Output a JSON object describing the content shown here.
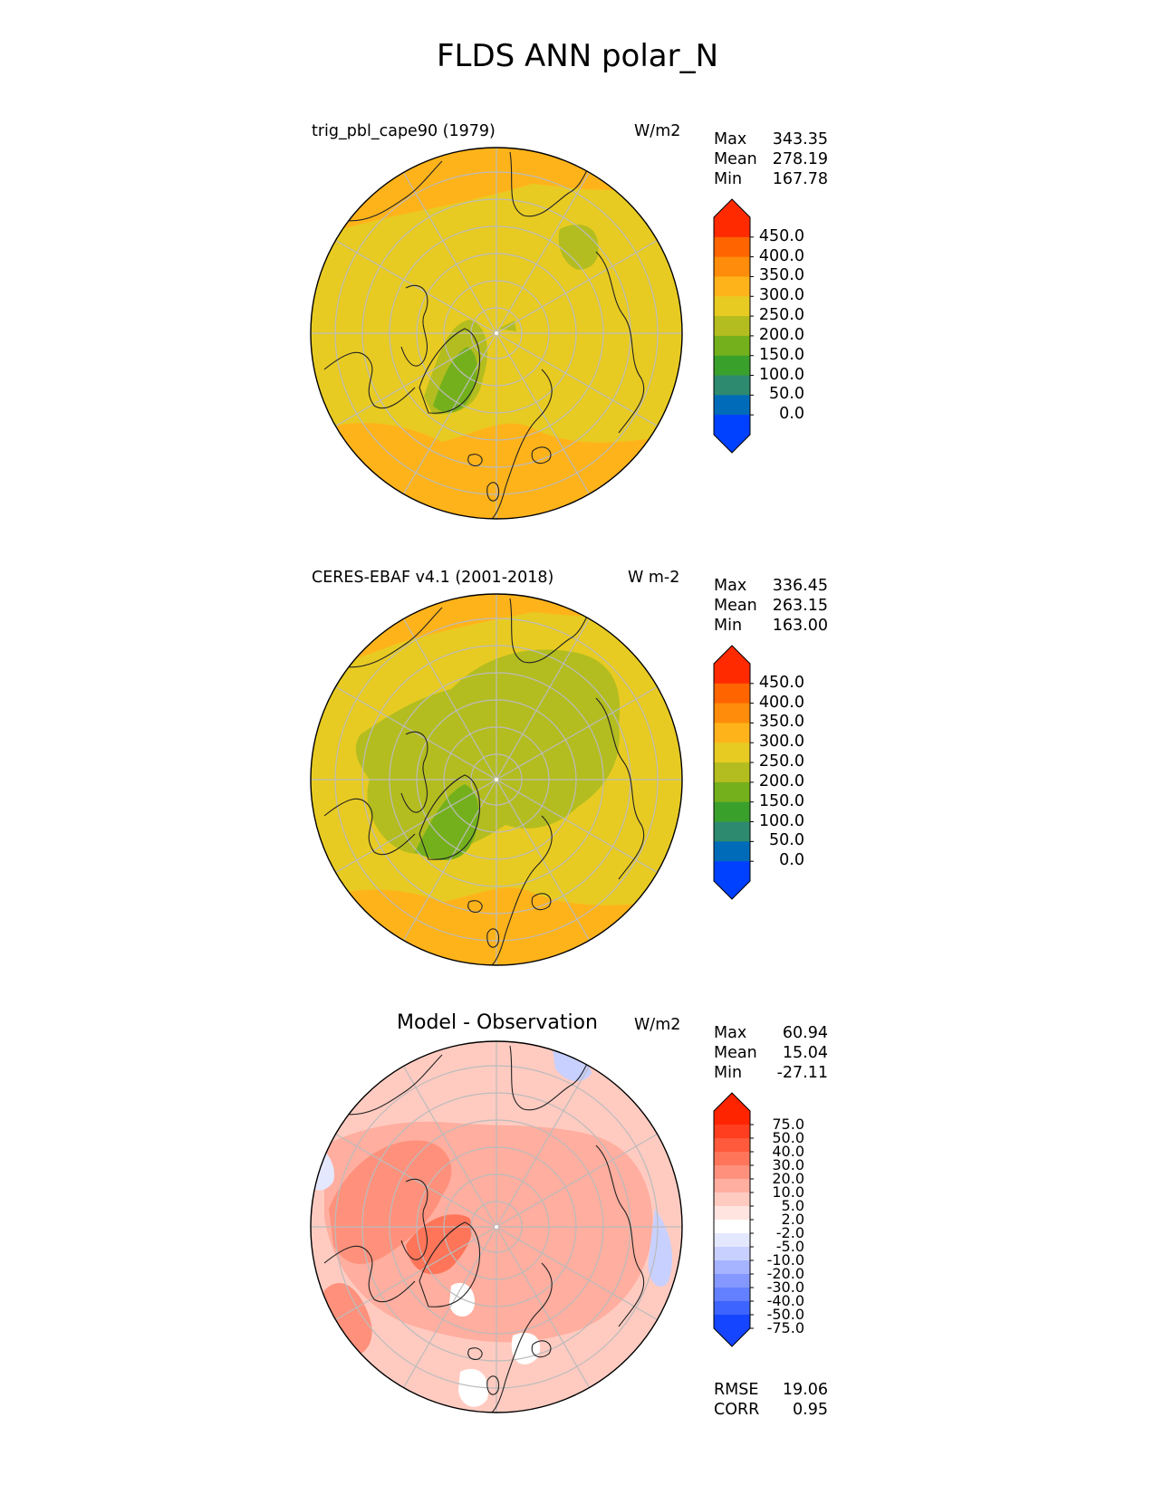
{
  "figure_title": "FLDS ANN polar_N",
  "colors": {
    "abs_levels": [
      "#0040ff",
      "#006bb8",
      "#2e8a6e",
      "#3aa02c",
      "#74b01c",
      "#b3bd1f",
      "#e8cb22",
      "#ffb31a",
      "#ff8c0a",
      "#ff6400",
      "#ff2a00"
    ],
    "diff_levels": [
      "#1545ff",
      "#3e64ff",
      "#6280ff",
      "#8498ff",
      "#a6b3ff",
      "#c8d0ff",
      "#e4e8ff",
      "#ffffff",
      "#ffe4e0",
      "#ffcbc1",
      "#ffae9f",
      "#ff917c",
      "#ff755a",
      "#ff5a3b",
      "#ff3d1f",
      "#ff2400"
    ],
    "coastline": "#222222",
    "grid": "#bbbbbb"
  },
  "panels": [
    {
      "left_title": "trig_pbl_cape90 (1979)",
      "units": "W/m2",
      "stats": [
        {
          "label": "Max",
          "value": "343.35"
        },
        {
          "label": "Mean",
          "value": "278.19"
        },
        {
          "label": "Min",
          "value": "167.78"
        }
      ],
      "colorbar_ticks": [
        "450.0",
        "400.0",
        "350.0",
        "300.0",
        "250.0",
        "200.0",
        "150.0",
        "100.0",
        "50.0",
        "0.0"
      ]
    },
    {
      "left_title": "CERES-EBAF v4.1 (2001-2018)",
      "units": "W m-2",
      "stats": [
        {
          "label": "Max",
          "value": "336.45"
        },
        {
          "label": "Mean",
          "value": "263.15"
        },
        {
          "label": "Min",
          "value": "163.00"
        }
      ],
      "colorbar_ticks": [
        "450.0",
        "400.0",
        "350.0",
        "300.0",
        "250.0",
        "200.0",
        "150.0",
        "100.0",
        "50.0",
        "0.0"
      ]
    },
    {
      "center_title": "Model - Observation",
      "units": "W/m2",
      "stats": [
        {
          "label": "Max",
          "value": "60.94"
        },
        {
          "label": "Mean",
          "value": "15.04"
        },
        {
          "label": "Min",
          "value": "-27.11"
        }
      ],
      "colorbar_ticks": [
        "75.0",
        "50.0",
        "40.0",
        "30.0",
        "20.0",
        "10.0",
        "5.0",
        "2.0",
        "-2.0",
        "-5.0",
        "-10.0",
        "-20.0",
        "-30.0",
        "-40.0",
        "-50.0",
        "-75.0"
      ],
      "metrics": [
        {
          "label": "RMSE",
          "value": "19.06"
        },
        {
          "label": "CORR",
          "value": "0.95"
        }
      ]
    }
  ],
  "chart_data": [
    {
      "type": "heatmap",
      "title": "trig_pbl_cape90 (1979)",
      "projection": "north polar stereographic",
      "units": "W/m2",
      "summary": {
        "max": 343.35,
        "mean": 278.19,
        "min": 167.78
      },
      "levels": [
        0,
        50,
        100,
        150,
        200,
        250,
        300,
        350,
        400,
        450
      ],
      "extend": "both"
    },
    {
      "type": "heatmap",
      "title": "CERES-EBAF v4.1 (2001-2018)",
      "projection": "north polar stereographic",
      "units": "W m-2",
      "summary": {
        "max": 336.45,
        "mean": 263.15,
        "min": 163.0
      },
      "levels": [
        0,
        50,
        100,
        150,
        200,
        250,
        300,
        350,
        400,
        450
      ],
      "extend": "both"
    },
    {
      "type": "heatmap",
      "title": "Model - Observation",
      "projection": "north polar stereographic",
      "units": "W/m2",
      "summary": {
        "max": 60.94,
        "mean": 15.04,
        "min": -27.11
      },
      "levels": [
        -75,
        -50,
        -40,
        -30,
        -20,
        -10,
        -5,
        -2,
        2,
        5,
        10,
        20,
        30,
        40,
        50,
        75
      ],
      "extend": "both",
      "rmse": 19.06,
      "corr": 0.95
    }
  ]
}
